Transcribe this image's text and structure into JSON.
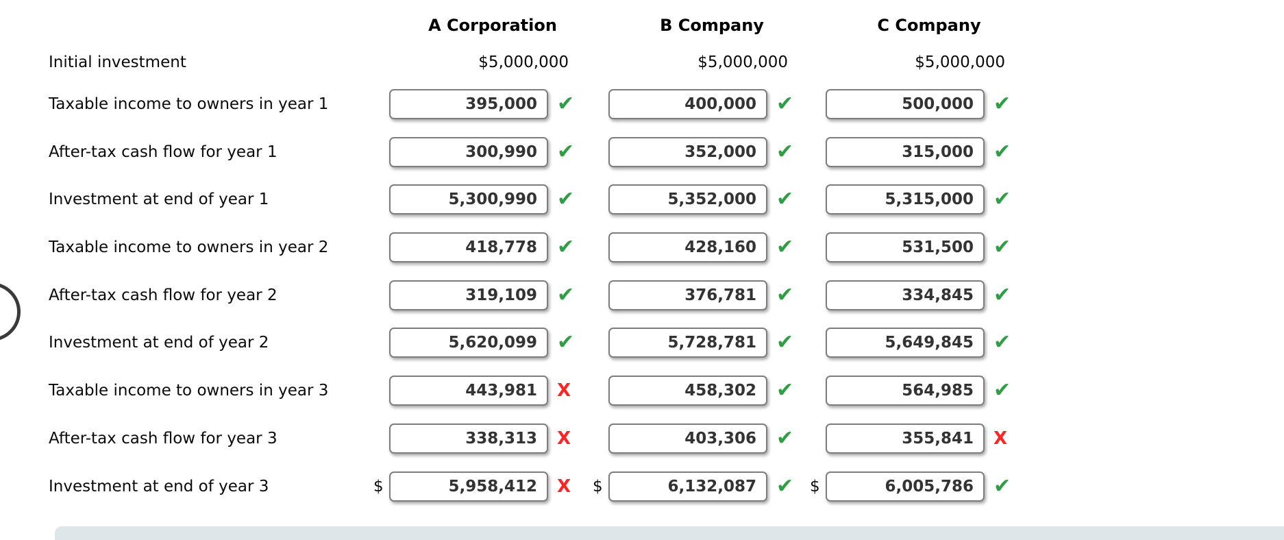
{
  "page": {
    "background": "#ffffff"
  },
  "currency_symbol": "$",
  "columns": [
    {
      "label": "A Corporation"
    },
    {
      "label": "B Company"
    },
    {
      "label": "C Company"
    }
  ],
  "initial_investment": {
    "label": "Initial investment",
    "values": [
      "$5,000,000",
      "$5,000,000",
      "$5,000,000"
    ]
  },
  "rows": [
    {
      "label": "Taxable income to owners in year 1",
      "dollar_prefix": false,
      "cells": [
        {
          "value": "395,000",
          "status": "correct"
        },
        {
          "value": "400,000",
          "status": "correct"
        },
        {
          "value": "500,000",
          "status": "correct"
        }
      ]
    },
    {
      "label": "After-tax cash flow for year 1",
      "dollar_prefix": false,
      "cells": [
        {
          "value": "300,990",
          "status": "correct"
        },
        {
          "value": "352,000",
          "status": "correct"
        },
        {
          "value": "315,000",
          "status": "correct"
        }
      ]
    },
    {
      "label": "Investment at end of year 1",
      "dollar_prefix": false,
      "cells": [
        {
          "value": "5,300,990",
          "status": "correct"
        },
        {
          "value": "5,352,000",
          "status": "correct"
        },
        {
          "value": "5,315,000",
          "status": "correct"
        }
      ]
    },
    {
      "label": "Taxable income to owners in year 2",
      "dollar_prefix": false,
      "cells": [
        {
          "value": "418,778",
          "status": "correct"
        },
        {
          "value": "428,160",
          "status": "correct"
        },
        {
          "value": "531,500",
          "status": "correct"
        }
      ]
    },
    {
      "label": "After-tax cash flow for year 2",
      "dollar_prefix": false,
      "cells": [
        {
          "value": "319,109",
          "status": "correct"
        },
        {
          "value": "376,781",
          "status": "correct"
        },
        {
          "value": "334,845",
          "status": "correct"
        }
      ]
    },
    {
      "label": "Investment at end of year 2",
      "dollar_prefix": false,
      "cells": [
        {
          "value": "5,620,099",
          "status": "correct"
        },
        {
          "value": "5,728,781",
          "status": "correct"
        },
        {
          "value": "5,649,845",
          "status": "correct"
        }
      ]
    },
    {
      "label": "Taxable income to owners in year 3",
      "dollar_prefix": false,
      "cells": [
        {
          "value": "443,981",
          "status": "incorrect"
        },
        {
          "value": "458,302",
          "status": "correct"
        },
        {
          "value": "564,985",
          "status": "correct"
        }
      ]
    },
    {
      "label": "After-tax cash flow for year 3",
      "dollar_prefix": false,
      "cells": [
        {
          "value": "338,313",
          "status": "incorrect"
        },
        {
          "value": "403,306",
          "status": "correct"
        },
        {
          "value": "355,841",
          "status": "incorrect"
        }
      ]
    },
    {
      "label": "Investment at end of year 3",
      "dollar_prefix": true,
      "cells": [
        {
          "value": "5,958,412",
          "status": "incorrect"
        },
        {
          "value": "6,132,087",
          "status": "correct"
        },
        {
          "value": "6,005,786",
          "status": "correct"
        }
      ]
    }
  ],
  "marks": {
    "correct_glyph": "✔",
    "incorrect_glyph": "X",
    "correct_color": "#2f9e44",
    "incorrect_color": "#fb2525"
  },
  "footer_bar_color": "#dde7ea"
}
